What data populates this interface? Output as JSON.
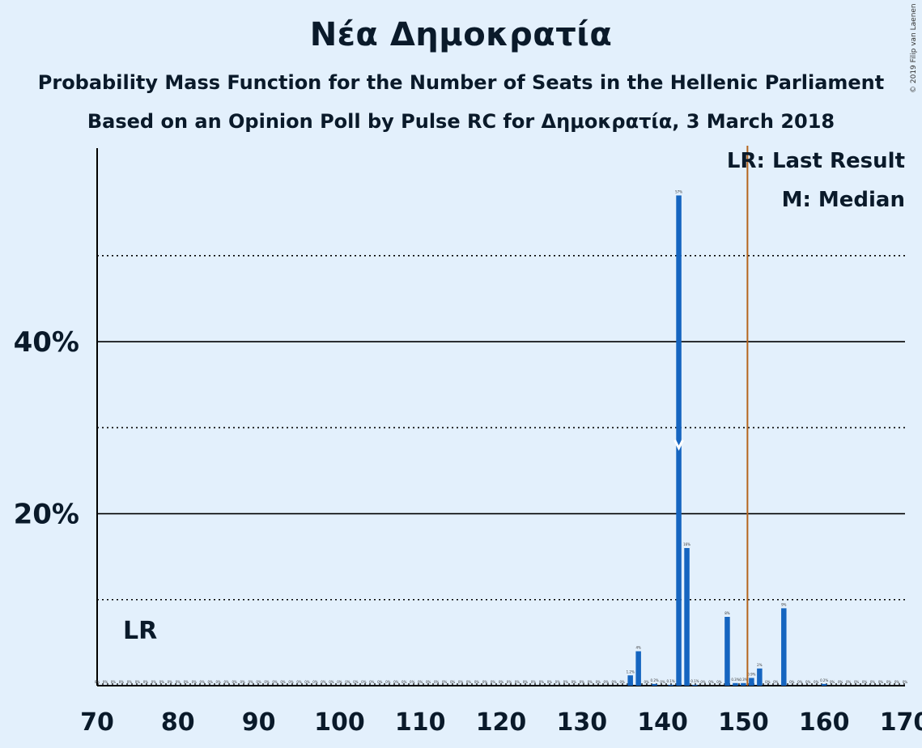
{
  "title": "Νέα Δημοκρατία",
  "subtitle": "Probability Mass Function for the Number of Seats in the Hellenic Parliament",
  "subtitle2": "Based on an Opinion Poll by Pulse RC for Δημοκρατία, 3 March 2018",
  "copyright": "© 2019 Filip van Laenen",
  "legend": {
    "last_result": "LR: Last Result",
    "median": "M: Median"
  },
  "colors": {
    "bar": "#1565c0",
    "last_result_line": "#b5651d",
    "background": "#e3f0fc"
  },
  "chart_data": {
    "type": "bar",
    "xlim": [
      70,
      170
    ],
    "ylim": [
      0,
      62.5
    ],
    "x_ticks": [
      70,
      80,
      90,
      100,
      110,
      120,
      130,
      140,
      150,
      160,
      170
    ],
    "x_tick_labels": [
      "70",
      "80",
      "90",
      "100",
      "110",
      "120",
      "130",
      "140",
      "150",
      "160",
      "170"
    ],
    "y_ticks_labeled": [
      20,
      40
    ],
    "y_tick_labels": [
      "20%",
      "40%"
    ],
    "y_gridlines_solid": [
      20,
      40
    ],
    "y_gridlines_dotted": [
      10,
      30,
      50
    ],
    "last_result": 151,
    "last_result_label": "LR",
    "median": 142,
    "bars": [
      {
        "x": 136,
        "value": 1.2,
        "label": "1.2%"
      },
      {
        "x": 137,
        "value": 4,
        "label": "4%"
      },
      {
        "x": 138,
        "value": 0,
        "label": "0%"
      },
      {
        "x": 139,
        "value": 0.2,
        "label": "0.2%"
      },
      {
        "x": 140,
        "value": 0,
        "label": "0%"
      },
      {
        "x": 141,
        "value": 0.1,
        "label": "0.1%"
      },
      {
        "x": 142,
        "value": 57,
        "label": "57%"
      },
      {
        "x": 143,
        "value": 16,
        "label": "16%"
      },
      {
        "x": 144,
        "value": 0.1,
        "label": "0.1%"
      },
      {
        "x": 145,
        "value": 0,
        "label": "0%"
      },
      {
        "x": 146,
        "value": 0,
        "label": "0%"
      },
      {
        "x": 147,
        "value": 0,
        "label": "0%"
      },
      {
        "x": 148,
        "value": 8,
        "label": "8%"
      },
      {
        "x": 149,
        "value": 0.3,
        "label": "0.3%"
      },
      {
        "x": 150,
        "value": 0.3,
        "label": "0.3%"
      },
      {
        "x": 151,
        "value": 0.9,
        "label": "0.9%"
      },
      {
        "x": 152,
        "value": 2,
        "label": "2%"
      },
      {
        "x": 153,
        "value": 0,
        "label": "0%"
      },
      {
        "x": 154,
        "value": 0,
        "label": "0%"
      },
      {
        "x": 155,
        "value": 9,
        "label": "9%"
      },
      {
        "x": 160,
        "value": 0.2,
        "label": "0.2%"
      }
    ],
    "zero_label": "0%"
  }
}
